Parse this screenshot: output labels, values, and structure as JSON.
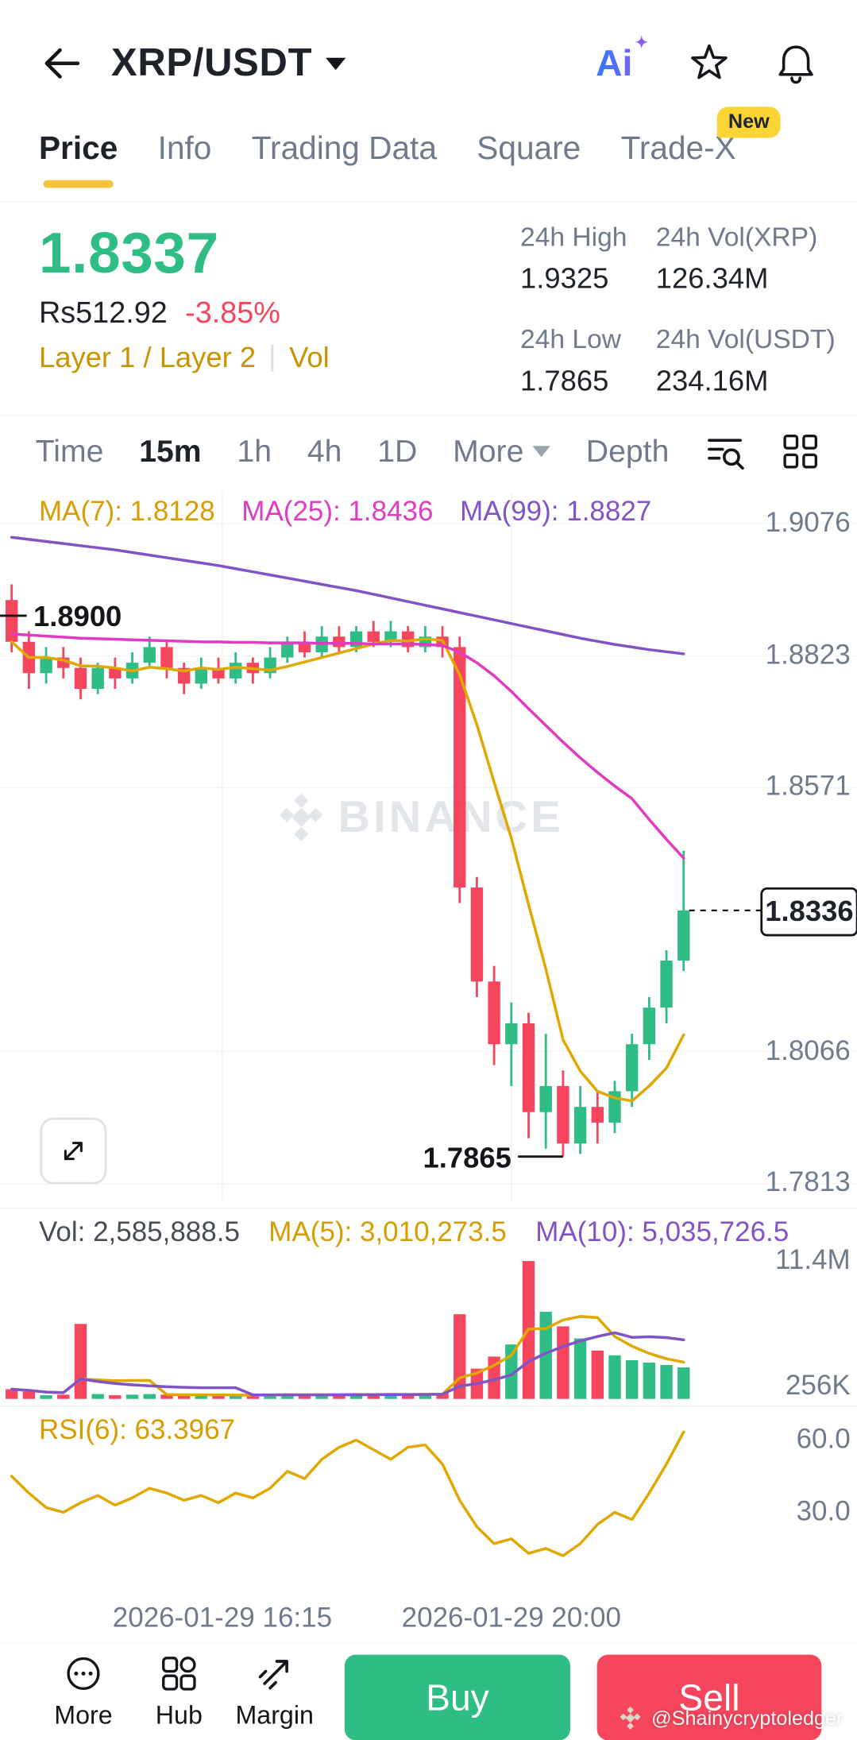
{
  "header": {
    "title": "XRP/USDT",
    "ai_label": "Ai"
  },
  "tabs": [
    {
      "label": "Price",
      "active": true
    },
    {
      "label": "Info"
    },
    {
      "label": "Trading Data"
    },
    {
      "label": "Square"
    },
    {
      "label": "Trade-X",
      "badge": "New"
    }
  ],
  "price_summary": {
    "last_price": "1.8337",
    "fiat_price": "Rs512.92",
    "change_pct": "-3.85%",
    "category_tag": "Layer 1 / Layer 2",
    "vol_tag": "Vol",
    "stats": [
      {
        "label": "24h High",
        "value": "1.9325"
      },
      {
        "label": "24h Vol(XRP)",
        "value": "126.34M"
      },
      {
        "label": "24h Low",
        "value": "1.7865"
      },
      {
        "label": "24h Vol(USDT)",
        "value": "234.16M"
      }
    ]
  },
  "interval_bar": {
    "items": [
      "Time",
      "15m",
      "1h",
      "4h",
      "1D",
      "More",
      "Depth"
    ],
    "active": "15m"
  },
  "chart_data": {
    "type": "candlestick",
    "watermark": "BINANCE",
    "legend": {
      "ma7": "MA(7): 1.8128",
      "ma25": "MA(25): 1.8436",
      "ma99": "MA(99): 1.8827"
    },
    "price_axis_labels": [
      "1.9076",
      "1.8823",
      "1.8571",
      "1.8066",
      "1.7813"
    ],
    "ylim": [
      1.778,
      1.911
    ],
    "open_marker": {
      "value": 1.89,
      "label": "1.8900"
    },
    "low_marker": {
      "value": 1.7865,
      "label": "1.7865",
      "candle_index": 32
    },
    "last_price": {
      "value": 1.8336,
      "label": "1.8336"
    },
    "colors": {
      "up": "#2EBD85",
      "down": "#F6465D",
      "ma7": "#E0A800",
      "ma25": "#E03BC2",
      "ma99": "#8153C6"
    },
    "candles": [
      [
        1.893,
        1.896,
        1.883,
        1.885
      ],
      [
        1.885,
        1.887,
        1.876,
        1.879
      ],
      [
        1.879,
        1.884,
        1.877,
        1.882
      ],
      [
        1.882,
        1.884,
        1.878,
        1.88
      ],
      [
        1.88,
        1.882,
        1.874,
        1.876
      ],
      [
        1.876,
        1.881,
        1.875,
        1.88
      ],
      [
        1.88,
        1.882,
        1.876,
        1.878
      ],
      [
        1.878,
        1.883,
        1.877,
        1.881
      ],
      [
        1.881,
        1.886,
        1.88,
        1.884
      ],
      [
        1.884,
        1.885,
        1.878,
        1.88
      ],
      [
        1.88,
        1.881,
        1.875,
        1.877
      ],
      [
        1.877,
        1.882,
        1.876,
        1.88
      ],
      [
        1.88,
        1.882,
        1.877,
        1.878
      ],
      [
        1.878,
        1.883,
        1.877,
        1.881
      ],
      [
        1.881,
        1.882,
        1.877,
        1.879
      ],
      [
        1.879,
        1.884,
        1.878,
        1.882
      ],
      [
        1.882,
        1.886,
        1.881,
        1.885
      ],
      [
        1.885,
        1.887,
        1.882,
        1.883
      ],
      [
        1.883,
        1.888,
        1.882,
        1.886
      ],
      [
        1.886,
        1.888,
        1.883,
        1.884
      ],
      [
        1.884,
        1.888,
        1.883,
        1.887
      ],
      [
        1.887,
        1.889,
        1.884,
        1.885
      ],
      [
        1.885,
        1.889,
        1.884,
        1.887
      ],
      [
        1.887,
        1.888,
        1.883,
        1.884
      ],
      [
        1.884,
        1.888,
        1.883,
        1.886
      ],
      [
        1.886,
        1.888,
        1.882,
        1.884
      ],
      [
        1.884,
        1.886,
        1.835,
        1.838
      ],
      [
        1.838,
        1.84,
        1.817,
        1.82
      ],
      [
        1.82,
        1.823,
        1.804,
        1.808
      ],
      [
        1.808,
        1.816,
        1.8,
        1.812
      ],
      [
        1.812,
        1.814,
        1.79,
        1.795
      ],
      [
        1.795,
        1.81,
        1.788,
        1.8
      ],
      [
        1.8,
        1.803,
        1.7865,
        1.789
      ],
      [
        1.789,
        1.8,
        1.787,
        1.796
      ],
      [
        1.796,
        1.799,
        1.789,
        1.793
      ],
      [
        1.793,
        1.801,
        1.791,
        1.799
      ],
      [
        1.799,
        1.81,
        1.796,
        1.808
      ],
      [
        1.808,
        1.817,
        1.805,
        1.815
      ],
      [
        1.815,
        1.826,
        1.812,
        1.824
      ],
      [
        1.824,
        1.845,
        1.822,
        1.8336
      ]
    ],
    "ma25": [
      1.8865,
      1.8863,
      1.8861,
      1.8859,
      1.8857,
      1.8856,
      1.8855,
      1.8854,
      1.8853,
      1.8852,
      1.8851,
      1.885,
      1.885,
      1.8849,
      1.8849,
      1.8848,
      1.8848,
      1.8848,
      1.8847,
      1.8847,
      1.8847,
      1.8846,
      1.8846,
      1.8846,
      1.8845,
      1.8843,
      1.883,
      1.881,
      1.8785,
      1.8755,
      1.8722,
      1.869,
      1.8658,
      1.8628,
      1.86,
      1.8574,
      1.855,
      1.851,
      1.8472,
      1.8436
    ],
    "ma99": [
      1.905,
      1.9046,
      1.9042,
      1.9038,
      1.9034,
      1.903,
      1.9026,
      1.9021,
      1.9016,
      1.9011,
      1.9006,
      1.9001,
      1.8996,
      1.899,
      1.8984,
      1.8978,
      1.8972,
      1.8966,
      1.896,
      1.8954,
      1.8948,
      1.8941,
      1.8934,
      1.8927,
      1.892,
      1.8913,
      1.8906,
      1.8899,
      1.8892,
      1.8885,
      1.8878,
      1.8871,
      1.8864,
      1.8857,
      1.8851,
      1.8845,
      1.884,
      1.8835,
      1.8831,
      1.8827
    ],
    "volume": {
      "legend": {
        "vol": "Vol: 2,585,888.5",
        "ma5": "MA(5): 3,010,273.5",
        "ma10": "MA(10): 5,035,726.5"
      },
      "axis_labels": [
        "11.4M",
        "256K"
      ],
      "max_m": 11.4,
      "values_m": [
        0.8,
        0.6,
        0.3,
        0.35,
        6.2,
        0.4,
        0.3,
        0.35,
        0.4,
        0.35,
        0.3,
        0.3,
        0.3,
        0.35,
        0.3,
        0.35,
        0.4,
        0.3,
        0.4,
        0.35,
        0.4,
        0.35,
        0.4,
        0.35,
        0.4,
        0.5,
        7.0,
        2.5,
        3.5,
        4.5,
        11.4,
        7.2,
        6.0,
        5.0,
        4.0,
        3.6,
        3.2,
        3.0,
        2.8,
        2.6
      ]
    },
    "rsi": {
      "legend": "RSI(6): 63.3967",
      "axis_labels": [
        "60.0",
        "30.0"
      ],
      "values": [
        45,
        38,
        32,
        30,
        34,
        37,
        33,
        36,
        40,
        38,
        35,
        37,
        34,
        38,
        36,
        40,
        47,
        44,
        52,
        57,
        60,
        56,
        52,
        57,
        58,
        50,
        35,
        24,
        17,
        19,
        13,
        15,
        12,
        17,
        25,
        30,
        27,
        38,
        50,
        63.4
      ]
    },
    "x_axis_labels": [
      "2026-01-29 16:15",
      "2026-01-29 20:00"
    ]
  },
  "bottom_nav": {
    "items": [
      {
        "label": "More"
      },
      {
        "label": "Hub"
      },
      {
        "label": "Margin"
      }
    ],
    "buy_label": "Buy",
    "sell_label": "Sell",
    "watermark": "@Shainycryptoledger"
  }
}
